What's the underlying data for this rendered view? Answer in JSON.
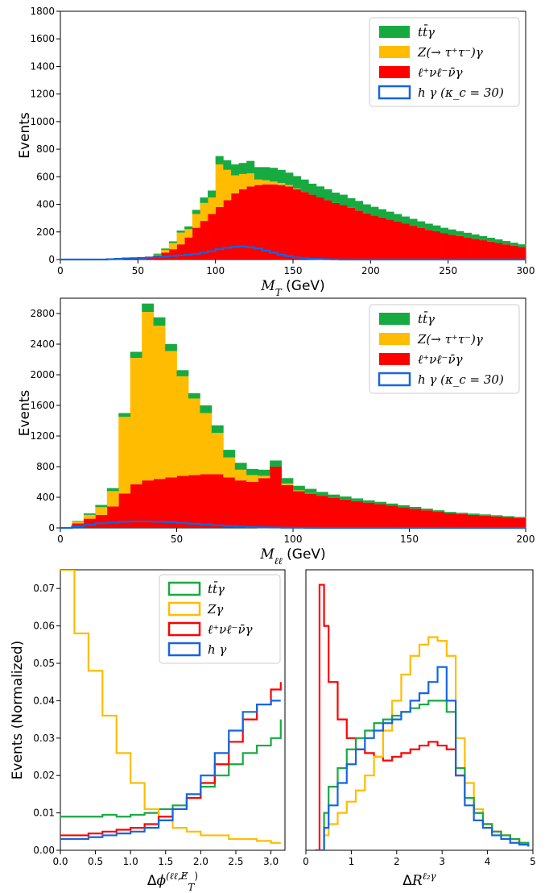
{
  "colors": {
    "ttgamma": "#17aa41",
    "zgamma": "#ffbc00",
    "wwgamma": "#ff0000",
    "hgamma": "#1565e0"
  },
  "chart_data": [
    {
      "id": "mt",
      "type": "bar",
      "stacked": true,
      "xlabel": "M_T (GeV)",
      "ylabel": "Events",
      "xlim": [
        0,
        300
      ],
      "ylim": [
        0,
        1800
      ],
      "xticks": [
        0,
        50,
        100,
        150,
        200,
        250,
        300
      ],
      "yticks": [
        0,
        200,
        400,
        600,
        800,
        1000,
        1200,
        1400,
        1600,
        1800
      ],
      "legend_position": "top-right",
      "bin_width": 5,
      "x": [
        2.5,
        7.5,
        12.5,
        17.5,
        22.5,
        27.5,
        32.5,
        37.5,
        42.5,
        47.5,
        52.5,
        57.5,
        62.5,
        67.5,
        72.5,
        77.5,
        82.5,
        87.5,
        92.5,
        97.5,
        102.5,
        107.5,
        112.5,
        117.5,
        122.5,
        127.5,
        132.5,
        137.5,
        142.5,
        147.5,
        152.5,
        157.5,
        162.5,
        167.5,
        172.5,
        177.5,
        182.5,
        187.5,
        192.5,
        197.5,
        202.5,
        207.5,
        212.5,
        217.5,
        222.5,
        227.5,
        232.5,
        237.5,
        242.5,
        247.5,
        252.5,
        257.5,
        262.5,
        267.5,
        272.5,
        277.5,
        282.5,
        287.5,
        292.5,
        297.5
      ],
      "series": [
        {
          "name": "ℓ⁺νℓ⁻ν̄γ",
          "color": "wwgamma",
          "values": [
            0,
            0,
            0,
            0,
            0,
            0,
            0,
            0,
            0,
            0,
            5,
            15,
            30,
            50,
            75,
            110,
            160,
            230,
            280,
            330,
            380,
            430,
            480,
            510,
            530,
            540,
            545,
            545,
            540,
            530,
            510,
            490,
            470,
            450,
            430,
            410,
            395,
            375,
            355,
            335,
            320,
            305,
            290,
            275,
            260,
            245,
            230,
            215,
            205,
            190,
            180,
            170,
            160,
            150,
            140,
            130,
            120,
            110,
            100,
            90
          ]
        },
        {
          "name": "Z(→ τ⁺τ⁻)γ",
          "color": "zgamma",
          "values": [
            0,
            0,
            0,
            0,
            0,
            0,
            0,
            0,
            0,
            0,
            0,
            0,
            5,
            20,
            45,
            85,
            60,
            100,
            130,
            120,
            310,
            220,
            130,
            110,
            95,
            40,
            30,
            20,
            15,
            10,
            5,
            0,
            0,
            0,
            0,
            0,
            0,
            0,
            0,
            0,
            0,
            0,
            0,
            0,
            0,
            0,
            0,
            0,
            0,
            0,
            0,
            0,
            0,
            0,
            0,
            0,
            0,
            0,
            0,
            0
          ]
        },
        {
          "name": "tt̄γ",
          "color": "ttgamma",
          "values": [
            0,
            0,
            0,
            0,
            0,
            0,
            0,
            0,
            0,
            0,
            2,
            5,
            8,
            10,
            12,
            15,
            20,
            30,
            40,
            50,
            60,
            70,
            80,
            80,
            90,
            90,
            95,
            100,
            95,
            90,
            90,
            90,
            80,
            80,
            80,
            75,
            75,
            70,
            70,
            65,
            62,
            60,
            57,
            55,
            52,
            50,
            47,
            45,
            42,
            40,
            38,
            36,
            34,
            32,
            30,
            28,
            26,
            24,
            22,
            20
          ]
        }
      ],
      "overlay": {
        "name": "h γ (κ_c = 30)",
        "color": "hgamma",
        "values": [
          0,
          0,
          0,
          0,
          0,
          0,
          2,
          5,
          8,
          10,
          12,
          15,
          18,
          22,
          26,
          30,
          35,
          40,
          50,
          60,
          75,
          85,
          92,
          95,
          90,
          80,
          65,
          50,
          35,
          25,
          15,
          10,
          6,
          4,
          2,
          1,
          0,
          0,
          0,
          0,
          0,
          0,
          0,
          0,
          0,
          0,
          0,
          0,
          0,
          0,
          0,
          0,
          0,
          0,
          0,
          0,
          0,
          0,
          0,
          0
        ]
      },
      "legend": [
        "tt̄γ",
        "Z(→ τ⁺τ⁻)γ",
        "ℓ⁺νℓ⁻ν̄γ",
        "h γ (κ_c = 30)"
      ]
    },
    {
      "id": "mll",
      "type": "bar",
      "stacked": true,
      "xlabel": "M_ℓℓ (GeV)",
      "ylabel": "Events",
      "xlim": [
        0,
        200
      ],
      "ylim": [
        0,
        3000
      ],
      "xticks": [
        0,
        50,
        100,
        150,
        200
      ],
      "yticks": [
        0,
        400,
        800,
        1200,
        1600,
        2000,
        2400,
        2800
      ],
      "legend_position": "top-right",
      "bin_width": 5,
      "x": [
        2.5,
        7.5,
        12.5,
        17.5,
        22.5,
        27.5,
        32.5,
        37.5,
        42.5,
        47.5,
        52.5,
        57.5,
        62.5,
        67.5,
        72.5,
        77.5,
        82.5,
        87.5,
        92.5,
        97.5,
        102.5,
        107.5,
        112.5,
        117.5,
        122.5,
        127.5,
        132.5,
        137.5,
        142.5,
        147.5,
        152.5,
        157.5,
        162.5,
        167.5,
        172.5,
        177.5,
        182.5,
        187.5,
        192.5,
        197.5
      ],
      "series": [
        {
          "name": "ℓ⁺νℓ⁻ν̄γ",
          "color": "wwgamma",
          "values": [
            0,
            60,
            120,
            170,
            280,
            450,
            570,
            620,
            640,
            660,
            680,
            690,
            700,
            700,
            660,
            620,
            600,
            650,
            800,
            560,
            480,
            450,
            420,
            390,
            370,
            350,
            330,
            310,
            290,
            270,
            250,
            230,
            210,
            190,
            180,
            170,
            160,
            150,
            140,
            130
          ]
        },
        {
          "name": "Z(→ τ⁺τ⁻)γ",
          "color": "zgamma",
          "values": [
            0,
            20,
            50,
            100,
            200,
            1000,
            1650,
            2200,
            2000,
            1650,
            1300,
            1000,
            800,
            540,
            260,
            140,
            90,
            30,
            0,
            20,
            10,
            5,
            0,
            0,
            0,
            0,
            0,
            0,
            0,
            0,
            0,
            0,
            0,
            0,
            0,
            0,
            0,
            0,
            0,
            0
          ]
        },
        {
          "name": "tt̄γ",
          "color": "ttgamma",
          "values": [
            0,
            10,
            20,
            30,
            40,
            50,
            80,
            110,
            110,
            90,
            80,
            70,
            100,
            100,
            100,
            90,
            80,
            80,
            80,
            70,
            60,
            55,
            50,
            45,
            40,
            35,
            30,
            30,
            28,
            26,
            24,
            22,
            20,
            19,
            18,
            17,
            16,
            15,
            14,
            13
          ]
        }
      ],
      "overlay": {
        "name": "h γ (κ_c = 30)",
        "color": "hgamma",
        "values": [
          0,
          20,
          40,
          60,
          70,
          80,
          85,
          85,
          80,
          75,
          65,
          55,
          45,
          35,
          25,
          18,
          12,
          8,
          5,
          3,
          2,
          1,
          0,
          0,
          0,
          0,
          0,
          0,
          0,
          0,
          0,
          0,
          0,
          0,
          0,
          0,
          0,
          0,
          0,
          0
        ]
      },
      "legend": [
        "tt̄γ",
        "Z(→ τ⁺τ⁻)γ",
        "ℓ⁺νℓ⁻ν̄γ",
        "h γ (κ_c = 30)"
      ]
    },
    {
      "id": "dphi",
      "type": "line",
      "step": true,
      "xlabel": "Δφ^(ℓℓ,E̸_T)",
      "ylabel": "Events (Normalized)",
      "xlim": [
        0,
        3.2
      ],
      "ylim": [
        0,
        0.075
      ],
      "xticks": [
        0.0,
        0.5,
        1.0,
        1.5,
        2.0,
        2.5,
        3.0
      ],
      "yticks": [
        0.0,
        0.01,
        0.02,
        0.03,
        0.04,
        0.05,
        0.06,
        0.07
      ],
      "legend_position": "top-right",
      "x": [
        0.0,
        0.2,
        0.4,
        0.6,
        0.8,
        1.0,
        1.2,
        1.4,
        1.6,
        1.8,
        2.0,
        2.2,
        2.4,
        2.6,
        2.8,
        3.0,
        3.14
      ],
      "series": [
        {
          "name": "tt̄γ",
          "color": "ttgamma",
          "values": [
            0.009,
            0.009,
            0.009,
            0.0095,
            0.009,
            0.0095,
            0.01,
            0.011,
            0.012,
            0.014,
            0.017,
            0.02,
            0.023,
            0.026,
            0.028,
            0.03,
            0.035
          ]
        },
        {
          "name": "Zγ",
          "color": "zgamma",
          "values": [
            0.075,
            0.058,
            0.048,
            0.036,
            0.026,
            0.018,
            0.011,
            0.008,
            0.006,
            0.005,
            0.004,
            0.004,
            0.003,
            0.003,
            0.0025,
            0.002,
            0.002
          ]
        },
        {
          "name": "ℓ⁺νℓ⁻ν̄γ",
          "color": "wwgamma",
          "values": [
            0.004,
            0.004,
            0.0045,
            0.005,
            0.0055,
            0.006,
            0.007,
            0.009,
            0.011,
            0.014,
            0.018,
            0.023,
            0.029,
            0.035,
            0.039,
            0.043,
            0.045
          ]
        },
        {
          "name": "h γ",
          "color": "hgamma",
          "values": [
            0.003,
            0.003,
            0.0035,
            0.004,
            0.0045,
            0.005,
            0.006,
            0.008,
            0.011,
            0.015,
            0.02,
            0.026,
            0.032,
            0.037,
            0.039,
            0.04,
            0.04
          ]
        }
      ],
      "legend": [
        "tt̄γ",
        "Zγ",
        "ℓ⁺νℓ⁻ν̄γ",
        "h γ"
      ]
    },
    {
      "id": "dr",
      "type": "line",
      "step": true,
      "xlabel": "ΔR^(ℓ₂γ)",
      "ylabel": "",
      "xlim": [
        0,
        5
      ],
      "ylim": [
        0,
        0.075
      ],
      "xticks": [
        0,
        1,
        2,
        3,
        4,
        5
      ],
      "x": [
        0.2,
        0.3,
        0.4,
        0.5,
        0.7,
        0.9,
        1.1,
        1.3,
        1.5,
        1.7,
        1.9,
        2.1,
        2.3,
        2.5,
        2.7,
        2.9,
        3.1,
        3.3,
        3.5,
        3.7,
        3.9,
        4.1,
        4.3,
        4.5,
        4.7,
        4.9
      ],
      "series": [
        {
          "name": "ℓ⁺νℓ⁻ν̄γ",
          "color": "wwgamma",
          "values": [
            0,
            0.071,
            0.06,
            0.045,
            0.035,
            0.03,
            0.027,
            0.026,
            0.025,
            0.024,
            0.025,
            0.026,
            0.027,
            0.028,
            0.029,
            0.028,
            0.027,
            0.02,
            0.014,
            0.01,
            0.007,
            0.005,
            0.004,
            0.003,
            0.002,
            0.001
          ]
        },
        {
          "name": "Zγ",
          "color": "zgamma",
          "values": [
            0,
            0.0,
            0.004,
            0.007,
            0.01,
            0.013,
            0.016,
            0.02,
            0.025,
            0.032,
            0.04,
            0.047,
            0.052,
            0.055,
            0.057,
            0.056,
            0.052,
            0.03,
            0.018,
            0.011,
            0.007,
            0.005,
            0.004,
            0.003,
            0.002,
            0.001
          ]
        },
        {
          "name": "tt̄γ",
          "color": "ttgamma",
          "values": [
            0,
            0.0,
            0.01,
            0.017,
            0.022,
            0.027,
            0.03,
            0.032,
            0.034,
            0.035,
            0.036,
            0.037,
            0.038,
            0.039,
            0.04,
            0.04,
            0.037,
            0.022,
            0.014,
            0.01,
            0.007,
            0.005,
            0.004,
            0.003,
            0.002,
            0.001
          ]
        },
        {
          "name": "h γ",
          "color": "hgamma",
          "values": [
            0,
            0.0,
            0.006,
            0.012,
            0.018,
            0.023,
            0.027,
            0.03,
            0.032,
            0.034,
            0.035,
            0.037,
            0.04,
            0.042,
            0.045,
            0.049,
            0.04,
            0.02,
            0.012,
            0.008,
            0.006,
            0.004,
            0.003,
            0.002,
            0.0015,
            0.001
          ]
        }
      ]
    }
  ]
}
